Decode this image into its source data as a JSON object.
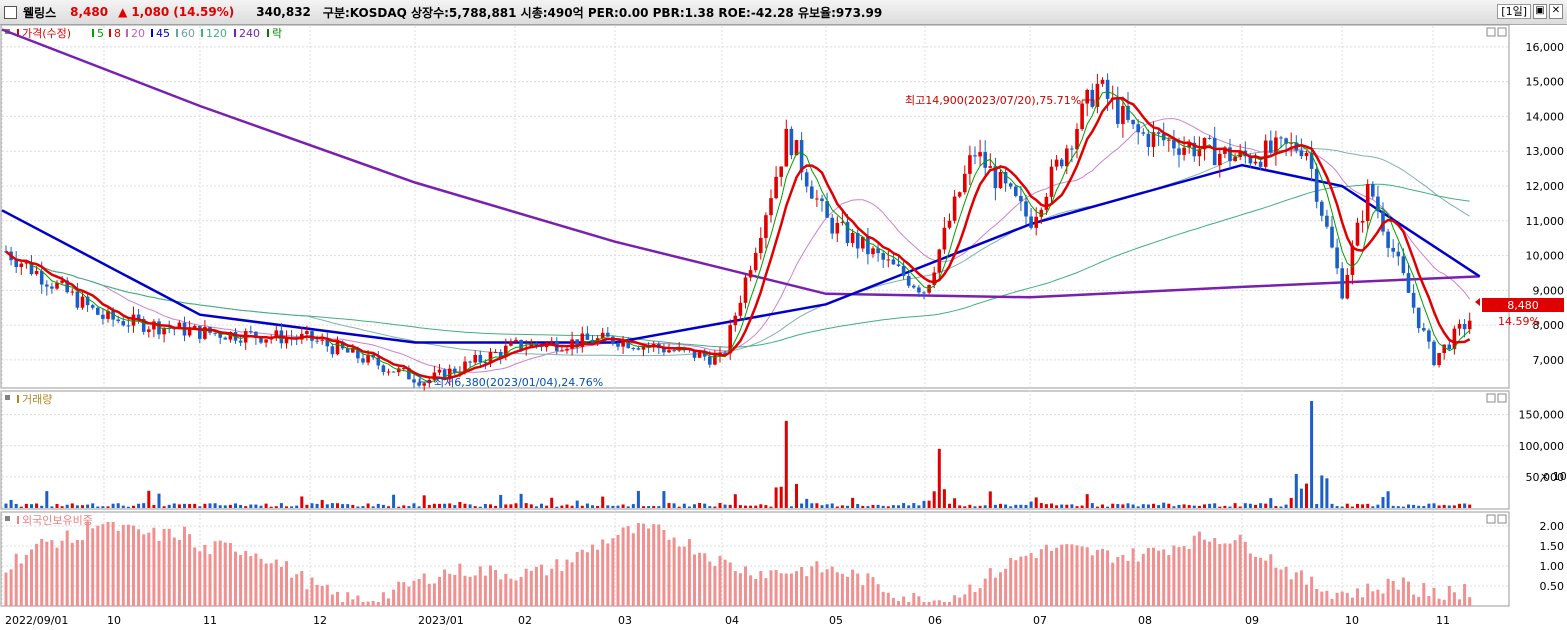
{
  "header": {
    "name": "웰링스",
    "price": "8,480",
    "arrow": "▲",
    "change": "1,080",
    "change_pct": "(14.59%)",
    "volume": "340,832",
    "info": "구분:KOSDAQ 상장수:5,788,881 시총:490억 PER:0.00 PBR:1.38 ROE:-42.28 유보율:973.99",
    "period": "[1일]",
    "btn_a": "▣",
    "btn_b": "✕"
  },
  "price_legend": {
    "label": "가격(수정)",
    "ma": [
      {
        "label": "5",
        "color": "#00a000"
      },
      {
        "label": "8",
        "color": "#e00000"
      },
      {
        "label": "20",
        "color": "#c060c0"
      },
      {
        "label": "45",
        "color": "#0000cc"
      },
      {
        "label": "60",
        "color": "#6aa0a0"
      },
      {
        "label": "120",
        "color": "#40b080"
      },
      {
        "label": "240",
        "color": "#7a20b0"
      },
      {
        "label": "락",
        "color": "#008000"
      }
    ]
  },
  "volume_legend": "거래량",
  "foreign_legend": "외국인보유비중",
  "annotations": {
    "high": "최고14,900(2023/07/20),75.71%",
    "low": "최저6,380(2023/01/04),24.76%"
  },
  "price_tag": {
    "price": "8,480",
    "pct": "14.59%"
  },
  "volume_unit": "× 10",
  "chart_data": [
    {
      "type": "line",
      "title": "가격(수정)",
      "x_ticks": [
        "2022/09/01",
        "10",
        "11",
        "12",
        "2023/01",
        "02",
        "03",
        "04",
        "05",
        "06",
        "07",
        "08",
        "09",
        "10",
        "11"
      ],
      "y_ticks": [
        7000,
        8000,
        9000,
        10000,
        11000,
        12000,
        13000,
        14000,
        15000,
        16000
      ],
      "ylim": [
        6250,
        16600
      ],
      "series": [
        {
          "name": "가격(수정)",
          "x": [
            "2022/09/01",
            "2022/10",
            "2022/11",
            "2022/12",
            "2023/01/04",
            "2023/02",
            "2023/03",
            "2023/04",
            "2023/04/20",
            "2023/05",
            "2023/06",
            "2023/06/15",
            "2023/07",
            "2023/07/20",
            "2023/08",
            "2023/09",
            "2023/09/20",
            "2023/10",
            "2023/10/10",
            "2023/11",
            "2023/11/15"
          ],
          "values": [
            10200,
            8200,
            7800,
            7600,
            6380,
            7400,
            7600,
            7000,
            13500,
            11000,
            9000,
            13000,
            11000,
            14900,
            13500,
            12800,
            13200,
            9000,
            12000,
            7000,
            8480
          ]
        },
        {
          "name": "240",
          "x": [
            "2022/09/01",
            "2022/11",
            "2023/01",
            "2023/03",
            "2023/05",
            "2023/07",
            "2023/09",
            "2023/11/15"
          ],
          "values": [
            16500,
            14300,
            12100,
            10400,
            8900,
            8800,
            9100,
            9400
          ]
        },
        {
          "name": "45",
          "x": [
            "2022/09/01",
            "2022/11",
            "2023/01",
            "2023/03",
            "2023/05",
            "2023/07",
            "2023/09",
            "2023/10",
            "2023/11/15"
          ],
          "values": [
            11300,
            8300,
            7500,
            7500,
            8600,
            10900,
            12600,
            12000,
            9400
          ]
        }
      ],
      "annotations": [
        {
          "label": "최고14,900(2023/07/20),75.71%",
          "x": "2023/07/20",
          "y": 14900
        },
        {
          "label": "최저6,380(2023/01/04),24.76%",
          "x": "2023/01/04",
          "y": 6380
        }
      ],
      "grid": true
    },
    {
      "type": "bar",
      "title": "거래량",
      "y_ticks": [
        50000,
        100000,
        150000
      ],
      "unit": "× 10",
      "peaks": [
        {
          "x": "2023/04/20",
          "value": 140000
        },
        {
          "x": "2023/09/22",
          "value": 172000
        },
        {
          "x": "2023/06/05",
          "value": 95000
        }
      ],
      "grid": true
    },
    {
      "type": "bar",
      "title": "외국인보유비중",
      "y_ticks": [
        0.5,
        1.0,
        1.5,
        2.0
      ],
      "values_summary": {
        "max": 2.1,
        "min": 0.1
      },
      "grid": true
    }
  ]
}
